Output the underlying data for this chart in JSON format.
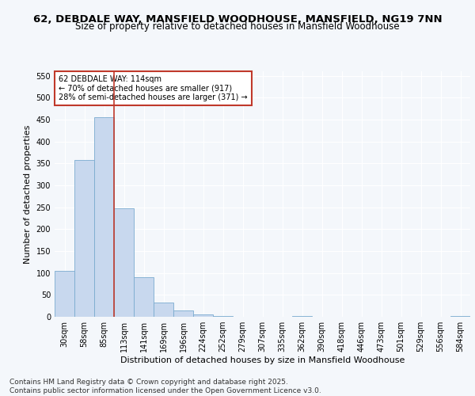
{
  "title1": "62, DEBDALE WAY, MANSFIELD WOODHOUSE, MANSFIELD, NG19 7NN",
  "title2": "Size of property relative to detached houses in Mansfield Woodhouse",
  "xlabel": "Distribution of detached houses by size in Mansfield Woodhouse",
  "ylabel": "Number of detached properties",
  "categories": [
    "30sqm",
    "58sqm",
    "85sqm",
    "113sqm",
    "141sqm",
    "169sqm",
    "196sqm",
    "224sqm",
    "252sqm",
    "279sqm",
    "307sqm",
    "335sqm",
    "362sqm",
    "390sqm",
    "418sqm",
    "446sqm",
    "473sqm",
    "501sqm",
    "529sqm",
    "556sqm",
    "584sqm"
  ],
  "values": [
    105,
    357,
    455,
    247,
    90,
    32,
    14,
    5,
    2,
    0,
    0,
    0,
    2,
    0,
    0,
    0,
    0,
    0,
    0,
    0,
    2
  ],
  "bar_color": "#c8d8ee",
  "bar_edge_color": "#7aabcf",
  "vline_color": "#c0392b",
  "annotation_text": "62 DEBDALE WAY: 114sqm\n← 70% of detached houses are smaller (917)\n28% of semi-detached houses are larger (371) →",
  "annotation_box_facecolor": "white",
  "annotation_box_edgecolor": "#c0392b",
  "ylim": [
    0,
    560
  ],
  "yticks": [
    0,
    50,
    100,
    150,
    200,
    250,
    300,
    350,
    400,
    450,
    500,
    550
  ],
  "footnote": "Contains HM Land Registry data © Crown copyright and database right 2025.\nContains public sector information licensed under the Open Government Licence v3.0.",
  "bg_color": "#f4f7fb",
  "grid_color": "#ffffff",
  "title_fontsize": 9.5,
  "subtitle_fontsize": 8.5,
  "axis_label_fontsize": 8,
  "tick_fontsize": 7,
  "annotation_fontsize": 7,
  "footnote_fontsize": 6.5
}
